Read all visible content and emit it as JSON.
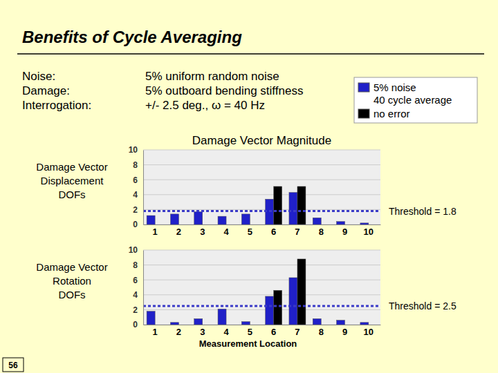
{
  "slide": {
    "title": "Benefits of Cycle Averaging",
    "params": [
      [
        "Noise:",
        "5% uniform random noise"
      ],
      [
        "Damage:",
        "5% outboard bending stiffness"
      ],
      [
        "Interrogation:",
        "+/- 2.5 deg., ω = 40 Hz"
      ]
    ],
    "page": "56"
  },
  "chart_data": [
    {
      "type": "bar",
      "title": "Damage Vector Magnitude",
      "ylabel": "Damage Vector\nDisplacement\nDOFs",
      "categories": [
        "1",
        "2",
        "3",
        "4",
        "5",
        "6",
        "7",
        "8",
        "9",
        "10"
      ],
      "series": [
        {
          "name": "5% noise\n40 cycle average",
          "color": "#2020c8",
          "values": [
            1.2,
            1.4,
            1.7,
            1.1,
            1.4,
            3.4,
            4.3,
            0.9,
            0.4,
            0.2
          ]
        },
        {
          "name": "no error",
          "color": "#000000",
          "values": [
            0,
            0,
            0,
            0,
            0,
            5.1,
            5.1,
            0,
            0,
            0
          ]
        }
      ],
      "ylim": [
        0,
        10
      ],
      "yticks": [
        0,
        2,
        4,
        6,
        8,
        10
      ],
      "grid": true,
      "legend": "top-right",
      "annotations": [
        {
          "text": "Threshold = 1.8",
          "y": 1.8
        }
      ]
    },
    {
      "type": "bar",
      "ylabel": "Damage Vector\nRotation\nDOFs",
      "xlabel": "Measurement Location",
      "categories": [
        "1",
        "2",
        "3",
        "4",
        "5",
        "6",
        "7",
        "8",
        "9",
        "10"
      ],
      "series": [
        {
          "color": "#2020c8",
          "values": [
            1.8,
            0.3,
            0.8,
            2.1,
            0.4,
            3.8,
            6.3,
            0.8,
            0.6,
            0.3
          ]
        },
        {
          "color": "#000000",
          "values": [
            0,
            0,
            0,
            0,
            0,
            4.6,
            8.8,
            0,
            0,
            0
          ]
        }
      ],
      "ylim": [
        0,
        10
      ],
      "yticks": [
        0,
        2,
        4,
        6,
        8,
        10
      ],
      "grid": true,
      "annotations": [
        {
          "text": "Threshold = 2.5",
          "y": 2.5
        }
      ]
    }
  ]
}
